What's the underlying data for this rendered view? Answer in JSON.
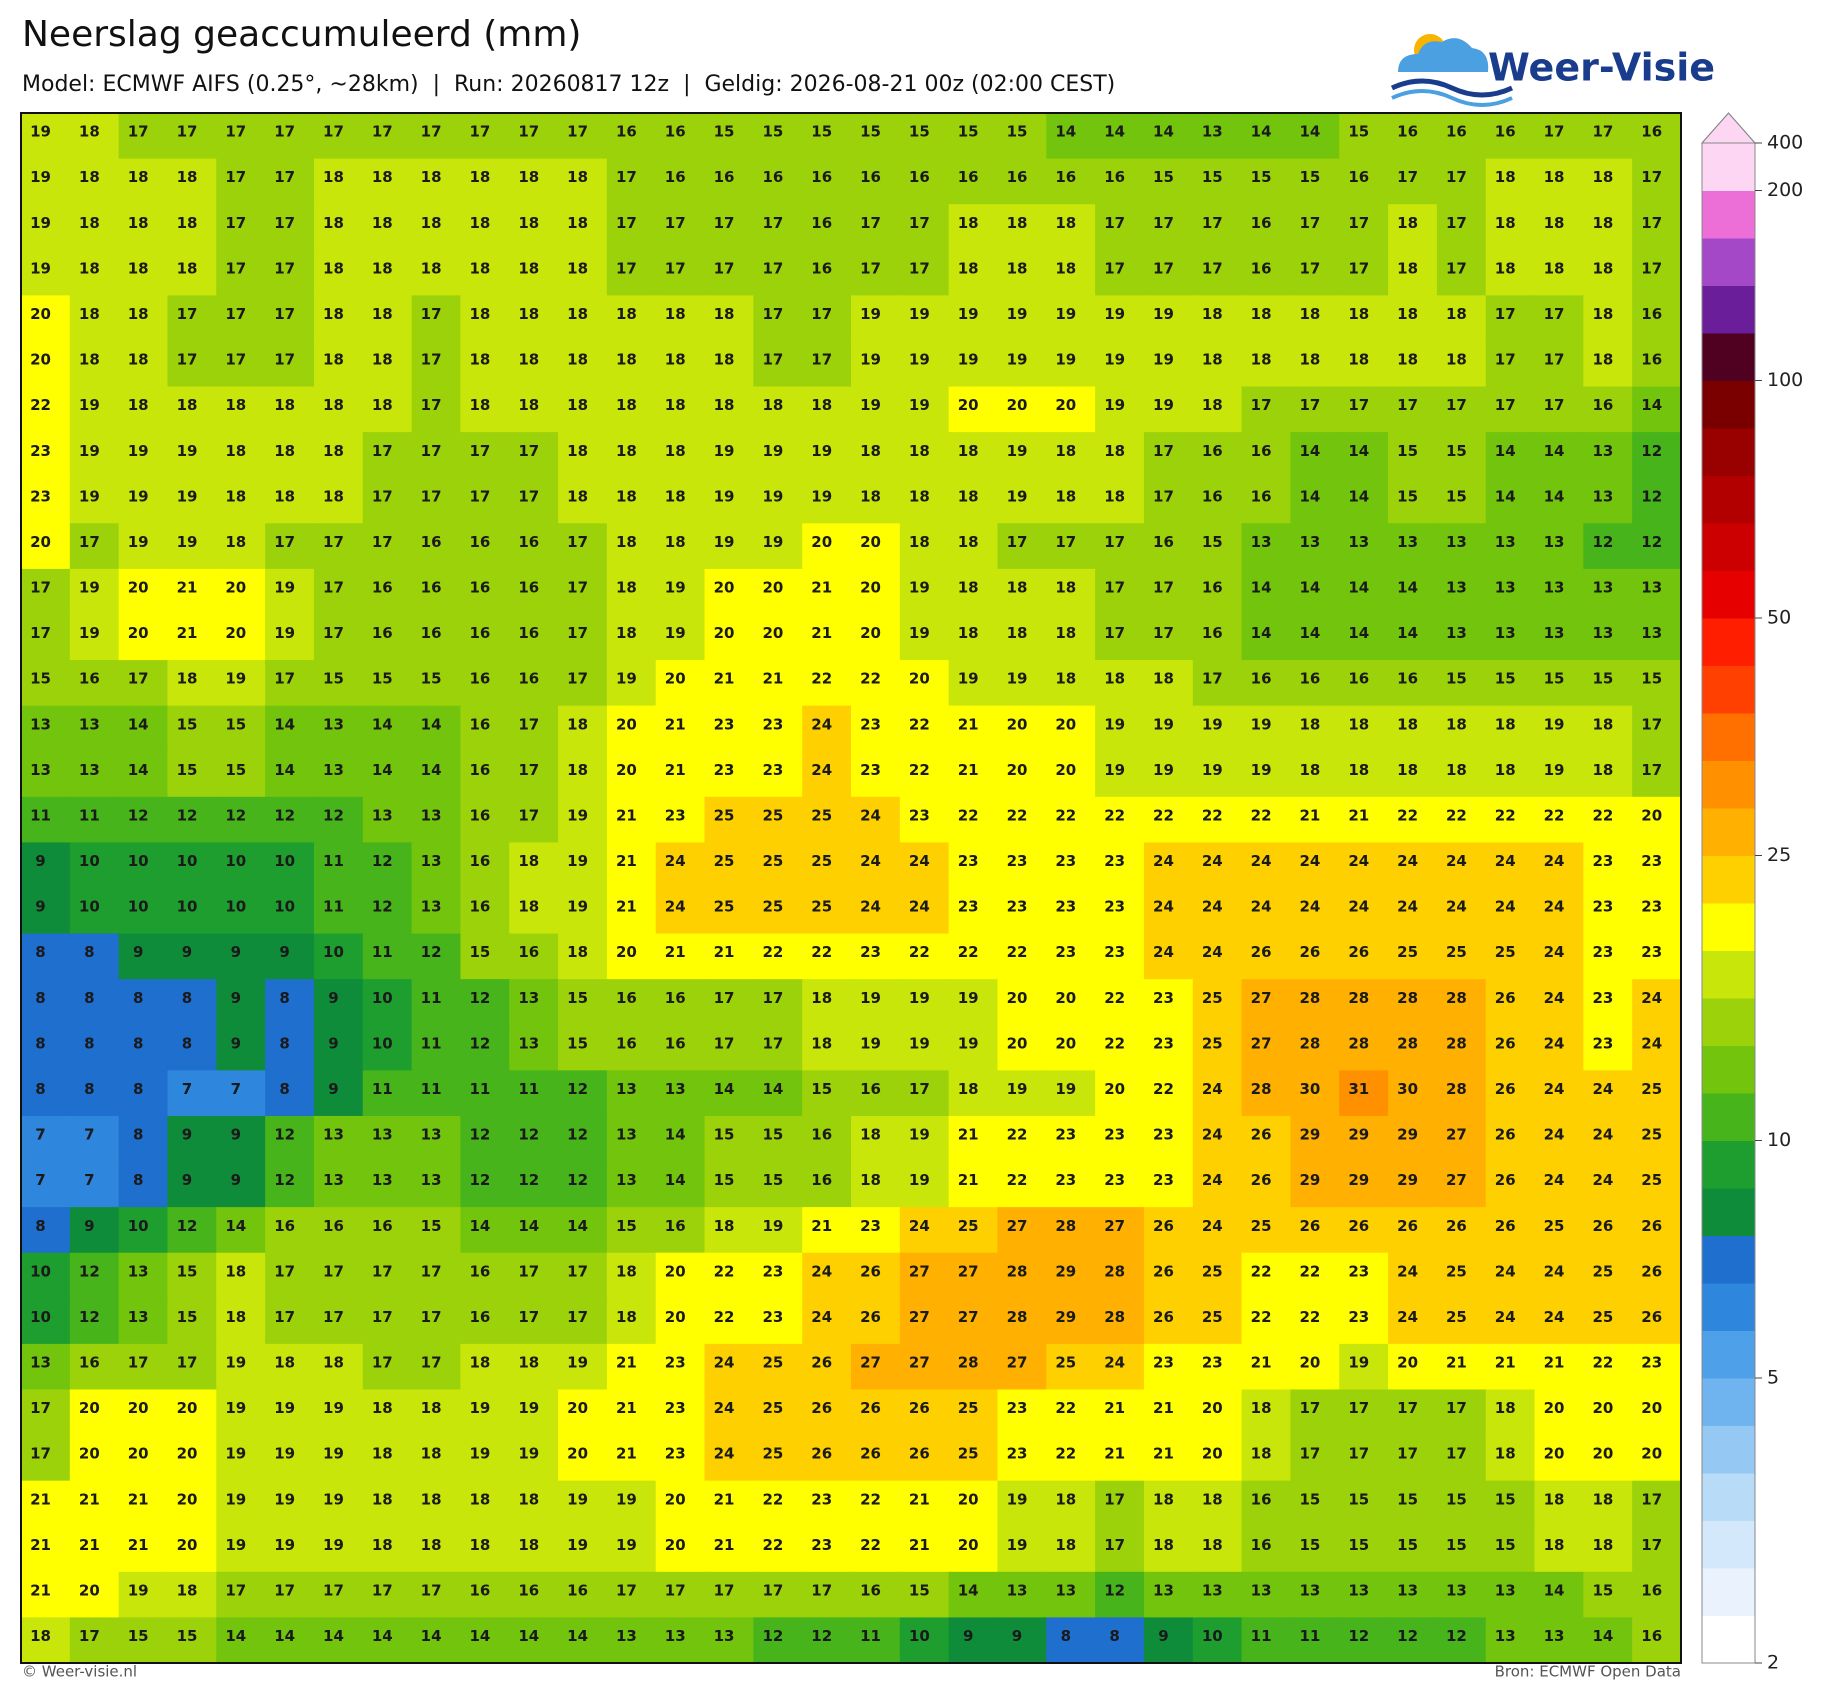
{
  "map": {
    "title": "Neerslag geaccumuleerd (mm)",
    "subtitle": "Model: ECMWF AIFS (0.25°, ~28km)  |  Run: 20260817 12z  |  Geldig: 2026-08-21 00z (02:00 CEST)",
    "logo": "Weer-Visie",
    "footer_left": "© Weer-visie.nl",
    "footer_right": "Bron: ECMWF Open Data",
    "grid": [
      [
        19,
        18,
        17,
        17,
        17,
        17,
        17,
        17,
        17,
        17,
        17,
        17,
        16,
        16,
        15,
        15,
        15,
        15,
        15,
        15,
        15,
        14,
        14,
        14,
        13,
        14,
        14,
        15,
        16,
        16,
        16,
        17,
        17,
        16
      ],
      [
        19,
        18,
        18,
        18,
        17,
        17,
        18,
        18,
        18,
        18,
        18,
        18,
        17,
        16,
        16,
        16,
        16,
        16,
        16,
        16,
        16,
        16,
        16,
        15,
        15,
        15,
        15,
        16,
        17,
        17,
        18,
        18,
        18,
        17
      ],
      [
        19,
        18,
        18,
        18,
        17,
        17,
        18,
        18,
        18,
        18,
        18,
        18,
        17,
        17,
        17,
        17,
        16,
        17,
        17,
        18,
        18,
        18,
        17,
        17,
        17,
        16,
        17,
        17,
        18,
        17,
        18,
        18,
        18,
        17
      ],
      [
        19,
        18,
        18,
        18,
        17,
        17,
        18,
        18,
        18,
        18,
        18,
        18,
        17,
        17,
        17,
        17,
        16,
        17,
        17,
        18,
        18,
        18,
        17,
        17,
        17,
        16,
        17,
        17,
        18,
        17,
        18,
        18,
        18,
        17
      ],
      [
        20,
        18,
        18,
        17,
        17,
        17,
        18,
        18,
        17,
        18,
        18,
        18,
        18,
        18,
        18,
        17,
        17,
        19,
        19,
        19,
        19,
        19,
        19,
        19,
        18,
        18,
        18,
        18,
        18,
        18,
        17,
        17,
        18,
        16
      ],
      [
        20,
        18,
        18,
        17,
        17,
        17,
        18,
        18,
        17,
        18,
        18,
        18,
        18,
        18,
        18,
        17,
        17,
        19,
        19,
        19,
        19,
        19,
        19,
        19,
        18,
        18,
        18,
        18,
        18,
        18,
        17,
        17,
        18,
        16
      ],
      [
        22,
        19,
        18,
        18,
        18,
        18,
        18,
        18,
        17,
        18,
        18,
        18,
        18,
        18,
        18,
        18,
        18,
        19,
        19,
        20,
        20,
        20,
        19,
        19,
        18,
        17,
        17,
        17,
        17,
        17,
        17,
        17,
        16,
        14
      ],
      [
        23,
        19,
        19,
        19,
        18,
        18,
        18,
        17,
        17,
        17,
        17,
        18,
        18,
        18,
        19,
        19,
        19,
        18,
        18,
        18,
        19,
        18,
        18,
        17,
        16,
        16,
        14,
        14,
        15,
        15,
        14,
        14,
        13,
        12
      ],
      [
        23,
        19,
        19,
        19,
        18,
        18,
        18,
        17,
        17,
        17,
        17,
        18,
        18,
        18,
        19,
        19,
        19,
        18,
        18,
        18,
        19,
        18,
        18,
        17,
        16,
        16,
        14,
        14,
        15,
        15,
        14,
        14,
        13,
        12
      ],
      [
        20,
        17,
        19,
        19,
        18,
        17,
        17,
        17,
        16,
        16,
        16,
        17,
        18,
        18,
        19,
        19,
        20,
        20,
        18,
        18,
        17,
        17,
        17,
        16,
        15,
        13,
        13,
        13,
        13,
        13,
        13,
        13,
        12,
        12
      ],
      [
        17,
        19,
        20,
        21,
        20,
        19,
        17,
        16,
        16,
        16,
        16,
        17,
        18,
        19,
        20,
        20,
        21,
        20,
        19,
        18,
        18,
        18,
        17,
        17,
        16,
        14,
        14,
        14,
        14,
        13,
        13,
        13,
        13,
        13
      ],
      [
        17,
        19,
        20,
        21,
        20,
        19,
        17,
        16,
        16,
        16,
        16,
        17,
        18,
        19,
        20,
        20,
        21,
        20,
        19,
        18,
        18,
        18,
        17,
        17,
        16,
        14,
        14,
        14,
        14,
        13,
        13,
        13,
        13,
        13
      ],
      [
        15,
        16,
        17,
        18,
        19,
        17,
        15,
        15,
        15,
        16,
        16,
        17,
        19,
        20,
        21,
        21,
        22,
        22,
        20,
        19,
        19,
        18,
        18,
        18,
        17,
        16,
        16,
        16,
        16,
        15,
        15,
        15,
        15,
        15
      ],
      [
        13,
        13,
        14,
        15,
        15,
        14,
        13,
        14,
        14,
        16,
        17,
        18,
        20,
        21,
        23,
        23,
        24,
        23,
        22,
        21,
        20,
        20,
        19,
        19,
        19,
        19,
        18,
        18,
        18,
        18,
        18,
        19,
        18,
        17
      ],
      [
        13,
        13,
        14,
        15,
        15,
        14,
        13,
        14,
        14,
        16,
        17,
        18,
        20,
        21,
        23,
        23,
        24,
        23,
        22,
        21,
        20,
        20,
        19,
        19,
        19,
        19,
        18,
        18,
        18,
        18,
        18,
        19,
        18,
        17
      ],
      [
        11,
        11,
        12,
        12,
        12,
        12,
        12,
        13,
        13,
        16,
        17,
        19,
        21,
        23,
        25,
        25,
        25,
        24,
        23,
        22,
        22,
        22,
        22,
        22,
        22,
        22,
        21,
        21,
        22,
        22,
        22,
        22,
        22,
        20
      ],
      [
        9,
        10,
        10,
        10,
        10,
        10,
        11,
        12,
        13,
        16,
        18,
        19,
        21,
        24,
        25,
        25,
        25,
        24,
        24,
        23,
        23,
        23,
        23,
        24,
        24,
        24,
        24,
        24,
        24,
        24,
        24,
        24,
        23,
        23
      ],
      [
        9,
        10,
        10,
        10,
        10,
        10,
        11,
        12,
        13,
        16,
        18,
        19,
        21,
        24,
        25,
        25,
        25,
        24,
        24,
        23,
        23,
        23,
        23,
        24,
        24,
        24,
        24,
        24,
        24,
        24,
        24,
        24,
        23,
        23
      ],
      [
        8,
        8,
        9,
        9,
        9,
        9,
        10,
        11,
        12,
        15,
        16,
        18,
        20,
        21,
        21,
        22,
        22,
        23,
        22,
        22,
        22,
        23,
        23,
        24,
        24,
        26,
        26,
        26,
        25,
        25,
        25,
        24,
        23,
        23
      ],
      [
        8,
        8,
        8,
        8,
        9,
        8,
        9,
        10,
        11,
        12,
        13,
        15,
        16,
        16,
        17,
        17,
        18,
        19,
        19,
        19,
        20,
        20,
        22,
        23,
        25,
        27,
        28,
        28,
        28,
        28,
        26,
        24,
        23,
        24
      ],
      [
        8,
        8,
        8,
        8,
        9,
        8,
        9,
        10,
        11,
        12,
        13,
        15,
        16,
        16,
        17,
        17,
        18,
        19,
        19,
        19,
        20,
        20,
        22,
        23,
        25,
        27,
        28,
        28,
        28,
        28,
        26,
        24,
        23,
        24
      ],
      [
        8,
        8,
        8,
        7,
        7,
        8,
        9,
        11,
        11,
        11,
        11,
        12,
        13,
        13,
        14,
        14,
        15,
        16,
        17,
        18,
        19,
        19,
        20,
        22,
        24,
        28,
        30,
        31,
        30,
        28,
        26,
        24,
        24,
        25
      ],
      [
        7,
        7,
        8,
        9,
        9,
        12,
        13,
        13,
        13,
        12,
        12,
        12,
        13,
        14,
        15,
        15,
        16,
        18,
        19,
        21,
        22,
        23,
        23,
        23,
        24,
        26,
        29,
        29,
        29,
        27,
        26,
        24,
        24,
        25
      ],
      [
        7,
        7,
        8,
        9,
        9,
        12,
        13,
        13,
        13,
        12,
        12,
        12,
        13,
        14,
        15,
        15,
        16,
        18,
        19,
        21,
        22,
        23,
        23,
        23,
        24,
        26,
        29,
        29,
        29,
        27,
        26,
        24,
        24,
        25
      ],
      [
        8,
        9,
        10,
        12,
        14,
        16,
        16,
        16,
        15,
        14,
        14,
        14,
        15,
        16,
        18,
        19,
        21,
        23,
        24,
        25,
        27,
        28,
        27,
        26,
        24,
        25,
        26,
        26,
        26,
        26,
        26,
        25,
        26,
        26
      ],
      [
        10,
        12,
        13,
        15,
        18,
        17,
        17,
        17,
        17,
        16,
        17,
        17,
        18,
        20,
        22,
        23,
        24,
        26,
        27,
        27,
        28,
        29,
        28,
        26,
        25,
        22,
        22,
        23,
        24,
        25,
        24,
        24,
        25,
        26
      ],
      [
        10,
        12,
        13,
        15,
        18,
        17,
        17,
        17,
        17,
        16,
        17,
        17,
        18,
        20,
        22,
        23,
        24,
        26,
        27,
        27,
        28,
        29,
        28,
        26,
        25,
        22,
        22,
        23,
        24,
        25,
        24,
        24,
        25,
        26
      ],
      [
        13,
        16,
        17,
        17,
        19,
        18,
        18,
        17,
        17,
        18,
        18,
        19,
        21,
        23,
        24,
        25,
        26,
        27,
        27,
        28,
        27,
        25,
        24,
        23,
        23,
        21,
        20,
        19,
        20,
        21,
        21,
        21,
        22,
        23
      ],
      [
        17,
        20,
        20,
        20,
        19,
        19,
        19,
        18,
        18,
        19,
        19,
        20,
        21,
        23,
        24,
        25,
        26,
        26,
        26,
        25,
        23,
        22,
        21,
        21,
        20,
        18,
        17,
        17,
        17,
        17,
        18,
        20,
        20,
        20
      ],
      [
        17,
        20,
        20,
        20,
        19,
        19,
        19,
        18,
        18,
        19,
        19,
        20,
        21,
        23,
        24,
        25,
        26,
        26,
        26,
        25,
        23,
        22,
        21,
        21,
        20,
        18,
        17,
        17,
        17,
        17,
        18,
        20,
        20,
        20
      ],
      [
        21,
        21,
        21,
        20,
        19,
        19,
        19,
        18,
        18,
        18,
        18,
        19,
        19,
        20,
        21,
        22,
        23,
        22,
        21,
        20,
        19,
        18,
        17,
        18,
        18,
        16,
        15,
        15,
        15,
        15,
        15,
        18,
        18,
        17
      ],
      [
        21,
        21,
        21,
        20,
        19,
        19,
        19,
        18,
        18,
        18,
        18,
        19,
        19,
        20,
        21,
        22,
        23,
        22,
        21,
        20,
        19,
        18,
        17,
        18,
        18,
        16,
        15,
        15,
        15,
        15,
        15,
        18,
        18,
        17
      ],
      [
        21,
        20,
        19,
        18,
        17,
        17,
        17,
        17,
        17,
        16,
        16,
        16,
        17,
        17,
        17,
        17,
        17,
        16,
        15,
        14,
        13,
        13,
        12,
        13,
        13,
        13,
        13,
        13,
        13,
        13,
        13,
        14,
        15,
        16
      ],
      [
        18,
        17,
        15,
        15,
        14,
        14,
        14,
        14,
        14,
        14,
        14,
        14,
        13,
        13,
        13,
        12,
        12,
        11,
        10,
        9,
        9,
        8,
        8,
        9,
        10,
        11,
        11,
        12,
        12,
        12,
        13,
        13,
        14,
        16
      ]
    ],
    "colorbar": {
      "ticks": [
        2,
        5,
        10,
        25,
        50,
        100,
        200,
        400
      ],
      "colors": [
        "#ffffff",
        "#eaf3fd",
        "#d3e8fb",
        "#b8dbf8",
        "#95c9f4",
        "#6fb4ef",
        "#4ea0e8",
        "#2f86dd",
        "#1f6fcf",
        "#0f8c3a",
        "#1e9e2e",
        "#46b41a",
        "#72c40c",
        "#9cd20a",
        "#c8e60a",
        "#ffff00",
        "#ffd000",
        "#ffb000",
        "#ff9000",
        "#ff7000",
        "#ff4000",
        "#ff1e00",
        "#e60000",
        "#cc0000",
        "#b20000",
        "#990000",
        "#7a0000",
        "#500020",
        "#6a1e9a",
        "#a548c8",
        "#ec6fd8",
        "#fdd6f4"
      ]
    }
  }
}
